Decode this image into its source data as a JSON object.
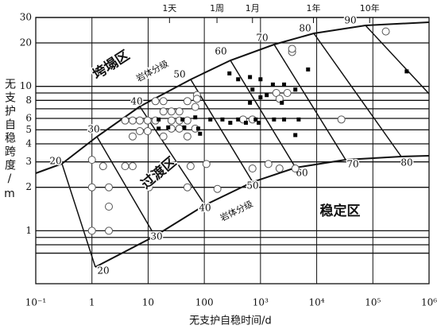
{
  "chart_data": {
    "type": "scatter",
    "xlabel": "无支护自稳时间/d",
    "ylabel": "无支护自稳跨度/m",
    "xscale": "log",
    "yscale": "log",
    "xlim": [
      0.1,
      1000000
    ],
    "ylim": [
      0.43,
      30
    ],
    "xticks": [
      {
        "value": 0.1,
        "label": "10⁻¹"
      },
      1,
      10,
      100,
      {
        "value": 1000,
        "label": "10³"
      },
      {
        "value": 10000,
        "label": "10⁴"
      },
      {
        "value": 100000,
        "label": "10⁵"
      },
      {
        "value": 1000000,
        "label": "10⁶"
      }
    ],
    "yticks": [
      1,
      2,
      3,
      4,
      5,
      6,
      8,
      10,
      20,
      30
    ],
    "minor_yticks": [
      0.7,
      0.8,
      0.9,
      7,
      9
    ],
    "top_ticks": [
      {
        "value": 24,
        "label": "1天"
      },
      {
        "value": 168,
        "label": "1周"
      },
      {
        "value": 720,
        "label": "1月"
      },
      {
        "value": 8760,
        "label": "1年"
      },
      {
        "value": 87600,
        "label": "10年"
      }
    ],
    "xgrid": true,
    "series": [
      {
        "marker": "circle",
        "color": "#555555",
        "x": [
          1,
          1,
          1,
          2,
          2,
          2,
          1.58,
          3.9,
          5.3,
          3.9,
          5.3,
          7.1,
          9.8,
          7.1,
          9.8,
          5.3,
          13.5,
          18.7,
          26,
          18.7,
          36,
          13.5,
          26,
          36,
          50,
          26,
          36,
          18.7,
          50,
          69,
          69,
          50,
          10.4,
          57,
          109,
          50,
          171,
          490,
          720,
          720,
          1380,
          2180,
          4170,
          3000,
          1910,
          2180,
          3650,
          3650,
          27500,
          170000,
          74,
          74
        ],
        "y": [
          3.1,
          2,
          1,
          2,
          1,
          1.47,
          2.8,
          2.8,
          2.8,
          5.8,
          5.8,
          5.8,
          5.8,
          4.9,
          4.9,
          4.5,
          7.9,
          7.9,
          6.7,
          6.7,
          6.7,
          5.8,
          5.8,
          5.8,
          5.8,
          5.1,
          5.1,
          4.5,
          4.5,
          5.1,
          7.2,
          7.9,
          2,
          2.8,
          2.9,
          2,
          1.95,
          5.9,
          5.9,
          2.7,
          2.9,
          2.7,
          2.7,
          9,
          9,
          8.2,
          17.3,
          18.2,
          5.9,
          24,
          8.7,
          8.2
        ]
      },
      {
        "marker": "square",
        "color": "#000000",
        "x": [
          280,
          400,
          650,
          1000,
          1660,
          2630,
          4170,
          650,
          1000,
          720,
          1290,
          2400,
          128,
          210,
          290,
          400,
          550,
          820,
          930,
          1740,
          2630,
          4780,
          4170,
          7030,
          400000,
          15.4,
          22.8,
          41,
          44,
          69,
          78,
          84,
          15.4
        ],
        "y": [
          12.3,
          11.2,
          11.6,
          11.2,
          10.3,
          10.3,
          9.5,
          7.7,
          8.4,
          9.5,
          8.7,
          7.7,
          5.9,
          5.9,
          5.6,
          5.9,
          5.6,
          5.9,
          5.6,
          5.9,
          5.9,
          5.9,
          4.6,
          13.1,
          12.7,
          5.9,
          5.2,
          5.9,
          5.2,
          6.1,
          5.1,
          4.7,
          5.1
        ]
      }
    ],
    "annotations": [
      {
        "text": "垮塌区"
      },
      {
        "text": "岩体分级"
      },
      {
        "text": "过渡区"
      },
      {
        "text": "岩体分级"
      },
      {
        "text": "稳定区"
      }
    ],
    "rmr_upper": [
      20,
      30,
      40,
      50,
      60,
      70,
      80,
      90
    ],
    "rmr_lower": [
      20,
      30,
      40,
      50,
      60,
      70,
      80
    ]
  }
}
